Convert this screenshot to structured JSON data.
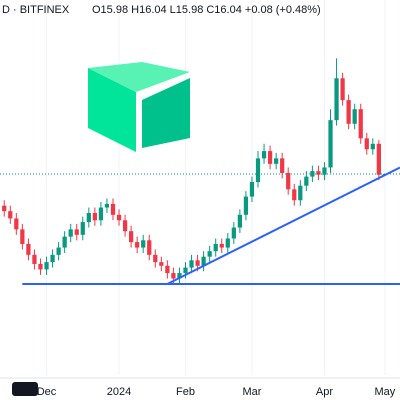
{
  "chart_data": {
    "type": "candlestick",
    "symbol": "D · BITFINEX",
    "ohlc_text": "O15.98 H16.04 L15.98 C16.04 +0.08 (+0.48%)",
    "open": [
      14.3,
      14.0,
      13.6,
      13.0,
      12.2,
      11.6,
      11.1,
      10.8,
      11.2,
      11.6,
      12.0,
      12.6,
      13.0,
      12.7,
      13.4,
      13.9,
      13.5,
      14.2,
      14.4,
      13.8,
      13.5,
      12.9,
      12.3,
      12.0,
      12.4,
      11.6,
      11.2,
      11.0,
      10.6,
      10.3,
      10.6,
      10.9,
      11.3,
      11.0,
      11.5,
      11.8,
      12.2,
      12.0,
      12.5,
      13.1,
      13.8,
      14.8,
      15.6,
      16.9,
      17.3,
      16.6,
      16.9,
      16.1,
      15.2,
      14.6,
      15.4,
      15.9,
      16.2,
      16.0,
      16.4,
      19.0,
      21.3,
      20.1,
      18.8,
      19.6,
      18.0,
      17.4,
      17.7,
      15.98
    ],
    "high": [
      14.6,
      14.3,
      13.9,
      13.3,
      12.5,
      11.9,
      11.4,
      11.5,
      11.9,
      12.3,
      12.9,
      13.3,
      13.3,
      13.7,
      14.2,
      14.2,
      14.5,
      14.7,
      14.7,
      14.1,
      13.8,
      13.2,
      12.6,
      12.7,
      12.7,
      11.9,
      11.5,
      11.3,
      10.9,
      10.9,
      11.2,
      11.6,
      11.6,
      11.8,
      12.1,
      12.5,
      12.5,
      12.8,
      13.4,
      14.1,
      15.1,
      15.9,
      17.3,
      17.7,
      17.6,
      17.2,
      17.2,
      16.4,
      15.5,
      15.7,
      16.2,
      16.5,
      16.5,
      16.7,
      19.6,
      22.4,
      21.6,
      20.4,
      19.9,
      19.9,
      18.3,
      18.0,
      17.9,
      16.04
    ],
    "low": [
      13.7,
      13.3,
      12.7,
      11.9,
      11.3,
      10.8,
      10.5,
      10.5,
      10.9,
      11.3,
      11.7,
      12.3,
      12.4,
      12.4,
      13.1,
      13.2,
      13.2,
      13.9,
      13.5,
      13.2,
      12.6,
      12.0,
      11.7,
      11.7,
      11.3,
      10.9,
      10.7,
      10.3,
      10.0,
      10.0,
      10.3,
      10.6,
      10.7,
      10.7,
      11.2,
      11.5,
      11.7,
      11.7,
      12.2,
      12.8,
      13.5,
      14.5,
      15.3,
      16.6,
      16.3,
      16.3,
      15.8,
      14.9,
      14.3,
      14.3,
      15.1,
      15.6,
      15.7,
      15.7,
      16.1,
      18.7,
      19.8,
      18.5,
      18.5,
      17.7,
      17.1,
      17.1,
      15.7,
      15.98
    ],
    "close": [
      14.0,
      13.6,
      13.0,
      12.2,
      11.6,
      11.1,
      10.8,
      11.2,
      11.6,
      12.0,
      12.6,
      13.0,
      12.7,
      13.4,
      13.9,
      13.5,
      14.2,
      14.4,
      13.8,
      13.5,
      12.9,
      12.3,
      12.0,
      12.4,
      11.6,
      11.2,
      11.0,
      10.6,
      10.3,
      10.6,
      10.9,
      11.3,
      11.0,
      11.5,
      11.8,
      12.2,
      12.0,
      12.5,
      13.1,
      13.8,
      14.8,
      15.6,
      16.9,
      17.3,
      16.6,
      16.9,
      16.1,
      15.2,
      14.6,
      15.4,
      15.9,
      16.2,
      16.0,
      16.4,
      19.0,
      21.3,
      20.1,
      18.8,
      19.6,
      18.0,
      17.4,
      17.7,
      16.0,
      16.04
    ],
    "up_color": "#089981",
    "down_color": "#f23645",
    "xlim": [
      -0.7,
      65.5
    ],
    "xticks": [
      {
        "value": 7,
        "label": "Dec"
      },
      {
        "value": 19,
        "label": "2024"
      },
      {
        "value": 30,
        "label": "Feb"
      },
      {
        "value": 41,
        "label": "Mar"
      },
      {
        "value": 53,
        "label": "Apr"
      },
      {
        "value": 63,
        "label": "May"
      }
    ],
    "ylim": [
      5.0,
      25.6
    ],
    "grid": true,
    "trendlines": [
      {
        "x": [
          3,
          65.5
        ],
        "y": [
          10.0,
          10.0
        ],
        "color": "#2962ff"
      },
      {
        "x": [
          27,
          65.5
        ],
        "y": [
          10.0,
          16.4
        ],
        "color": "#2962ff"
      }
    ]
  }
}
